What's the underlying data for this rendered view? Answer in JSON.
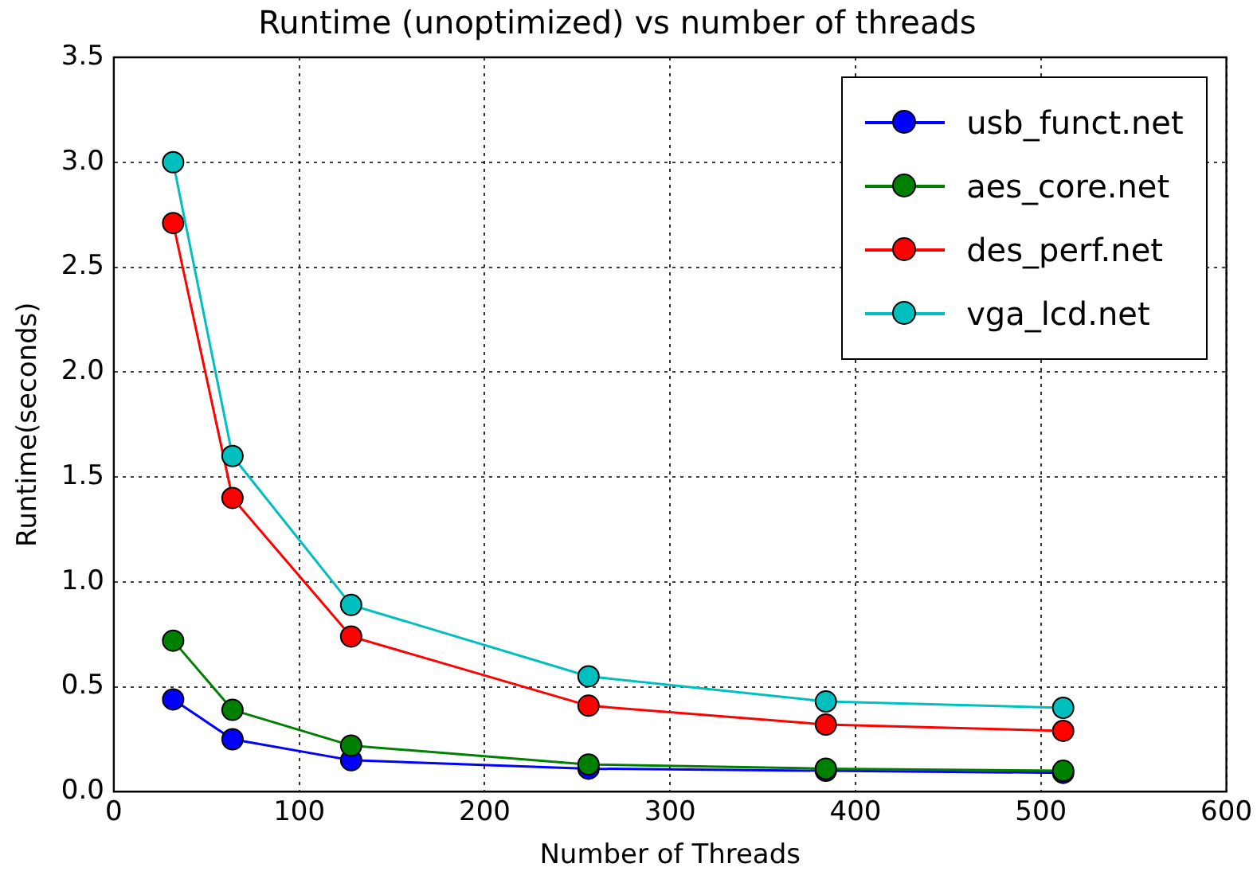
{
  "chart_data": {
    "type": "line",
    "title": "Runtime (unoptimized) vs number of threads",
    "xlabel": "Number of Threads",
    "ylabel": "Runtime(seconds)",
    "x": [
      32,
      64,
      128,
      256,
      384,
      512
    ],
    "series": [
      {
        "name": "usb_funct.net",
        "color": "#0000ff",
        "values": [
          0.44,
          0.25,
          0.15,
          0.11,
          0.1,
          0.09
        ]
      },
      {
        "name": "aes_core.net",
        "color": "#008000",
        "values": [
          0.72,
          0.39,
          0.22,
          0.13,
          0.11,
          0.1
        ]
      },
      {
        "name": "des_perf.net",
        "color": "#ff0000",
        "values": [
          2.71,
          1.4,
          0.74,
          0.41,
          0.32,
          0.29
        ]
      },
      {
        "name": "vga_lcd.net",
        "color": "#00bfbf",
        "values": [
          3.0,
          1.6,
          0.89,
          0.55,
          0.43,
          0.4
        ]
      }
    ],
    "xlim": [
      0,
      600
    ],
    "xticks": [
      0,
      100,
      200,
      300,
      400,
      500,
      600
    ],
    "ylim": [
      0,
      3.5
    ],
    "yticks": [
      {
        "value": 0,
        "label": "0.0"
      },
      {
        "value": 0.5,
        "label": "0.5"
      },
      {
        "value": 1,
        "label": "1.0"
      },
      {
        "value": 1.5,
        "label": "1.5"
      },
      {
        "value": 2,
        "label": "2.0"
      },
      {
        "value": 2.5,
        "label": "2.5"
      },
      {
        "value": 3,
        "label": "3.0"
      },
      {
        "value": 3.5,
        "label": "3.5"
      }
    ],
    "grid": true,
    "legend": "top right",
    "marker": "circle",
    "line_style": "solid"
  }
}
